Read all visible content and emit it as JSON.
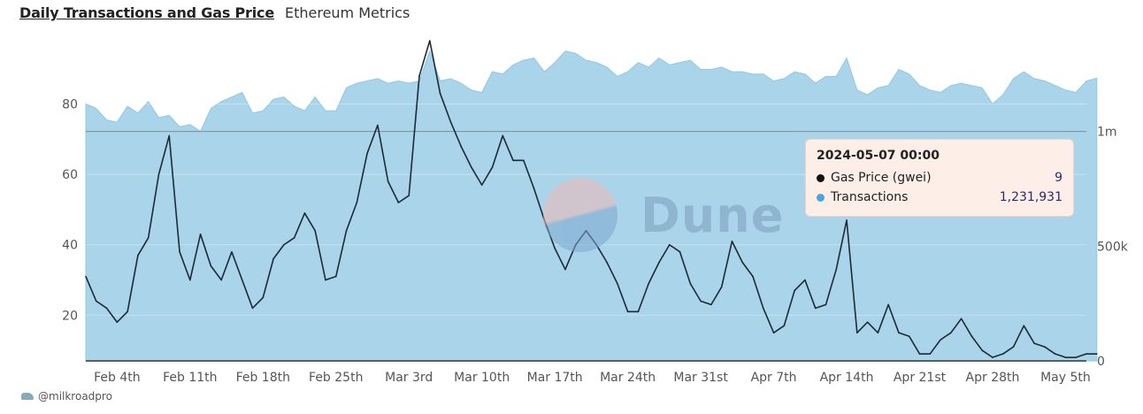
{
  "header": {
    "title": "Daily Transactions and Gas Price",
    "subtitle": "Ethereum Metrics"
  },
  "footer": {
    "handle": "@milkroadpro"
  },
  "watermark": {
    "text": "Dune"
  },
  "tooltip": {
    "timestamp": "2024-05-07 00:00",
    "rows": [
      {
        "name": "Gas Price (gwei)",
        "value": "9",
        "color": "#111111"
      },
      {
        "name": "Transactions",
        "value": "1,231,931",
        "color": "#4aa6d8"
      }
    ]
  },
  "chart_data": {
    "type": "line",
    "x_start": "2024-02-01",
    "x_end": "2024-05-07",
    "x_tick_labels": [
      "Feb 4th",
      "Feb 11th",
      "Feb 18th",
      "Feb 25th",
      "Mar 3rd",
      "Mar 10th",
      "Mar 17th",
      "Mar 24th",
      "Mar 31st",
      "Apr 7th",
      "Apr 14th",
      "Apr 21st",
      "Apr 28th",
      "May 5th"
    ],
    "y_left": {
      "ticks": [
        20,
        40,
        60,
        80
      ],
      "tick_labels": [
        "20",
        "40",
        "60",
        "80"
      ],
      "range": [
        7,
        97
      ]
    },
    "y_right": {
      "ticks": [
        0,
        500000,
        1000000
      ],
      "tick_labels": [
        "0",
        "500k",
        "1m"
      ],
      "range": [
        0,
        1380000
      ]
    },
    "reference_line_right": 1000000,
    "series": [
      {
        "name": "Gas Price (gwei)",
        "axis": "left",
        "type": "line",
        "color": "#111111",
        "values": [
          31,
          24,
          22,
          18,
          21,
          37,
          42,
          60,
          71,
          38,
          30,
          43,
          34,
          30,
          38,
          30,
          22,
          25,
          36,
          40,
          42,
          49,
          44,
          30,
          31,
          44,
          52,
          66,
          74,
          58,
          52,
          54,
          88,
          98,
          83,
          75,
          68,
          62,
          57,
          62,
          71,
          64,
          64,
          56,
          47,
          39,
          33,
          40,
          44,
          40,
          35,
          29,
          21,
          21,
          29,
          35,
          40,
          38,
          29,
          24,
          23,
          28,
          41,
          35,
          31,
          22,
          15,
          17,
          27,
          30,
          22,
          23,
          33,
          47,
          15,
          18,
          15,
          23,
          15,
          14,
          9,
          9,
          13,
          15,
          19,
          14,
          10,
          8,
          9,
          11,
          17,
          12,
          11,
          9,
          8,
          8,
          9,
          9
        ]
      },
      {
        "name": "Transactions",
        "axis": "right",
        "type": "area",
        "color": "#a9d4ea",
        "values": [
          1120000,
          1100000,
          1050000,
          1040000,
          1110000,
          1080000,
          1130000,
          1060000,
          1070000,
          1020000,
          1030000,
          1000000,
          1100000,
          1130000,
          1150000,
          1170000,
          1080000,
          1090000,
          1140000,
          1150000,
          1110000,
          1090000,
          1150000,
          1090000,
          1090000,
          1190000,
          1210000,
          1220000,
          1230000,
          1210000,
          1220000,
          1210000,
          1220000,
          1350000,
          1220000,
          1230000,
          1210000,
          1180000,
          1170000,
          1260000,
          1250000,
          1290000,
          1310000,
          1320000,
          1260000,
          1300000,
          1350000,
          1340000,
          1310000,
          1300000,
          1280000,
          1240000,
          1260000,
          1300000,
          1280000,
          1320000,
          1290000,
          1300000,
          1310000,
          1270000,
          1270000,
          1280000,
          1260000,
          1260000,
          1250000,
          1250000,
          1220000,
          1230000,
          1260000,
          1250000,
          1210000,
          1240000,
          1240000,
          1320000,
          1180000,
          1160000,
          1190000,
          1200000,
          1270000,
          1250000,
          1200000,
          1180000,
          1170000,
          1200000,
          1210000,
          1200000,
          1190000,
          1120000,
          1160000,
          1230000,
          1260000,
          1230000,
          1220000,
          1200000,
          1180000,
          1170000,
          1220000,
          1231931
        ]
      }
    ]
  }
}
